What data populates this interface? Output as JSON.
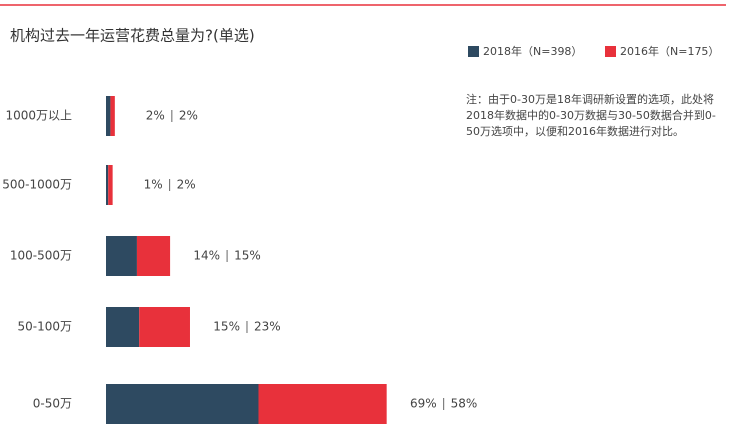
{
  "chart_data": {
    "type": "stacked-bar-horizontal",
    "title": "机构过去一年运营花费总量为?(单选)",
    "note": "注：由于0-30万是18年调研新设置的选项，此处将2018年数据中的0-30万数据与30-50数据合并到0-50万选项中，以便和2016年数据进行对比。",
    "categories": [
      "1000万以上",
      "500-1000万",
      "100-500万",
      "50-100万",
      "0-50万"
    ],
    "series": [
      {
        "name": "2018年（N=398）",
        "color": "#2e4a61",
        "values": [
          2,
          1,
          14,
          15,
          69
        ],
        "value_labels": [
          "2%",
          "1%",
          "14%",
          "15%",
          "69%"
        ]
      },
      {
        "name": "2016年（N=175）",
        "color": "#e8313b",
        "values": [
          2,
          2,
          15,
          23,
          58
        ],
        "value_labels": [
          "2%",
          "2%",
          "15%",
          "23%",
          "58%"
        ]
      }
    ]
  }
}
